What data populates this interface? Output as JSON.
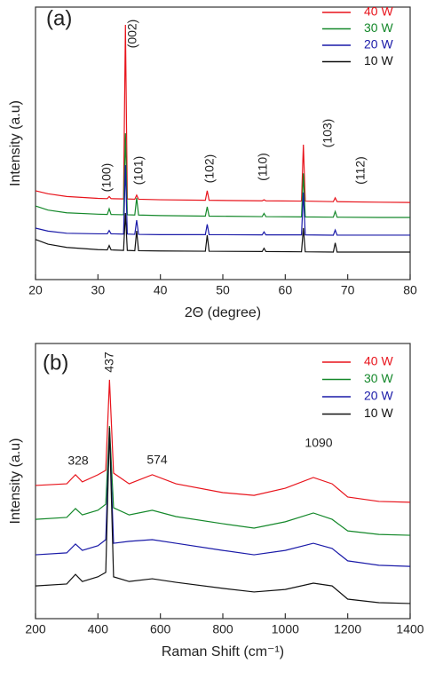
{
  "chart_data": [
    {
      "type": "line",
      "panel_label": "(a)",
      "xlabel": "2Θ (degree)",
      "ylabel": "Intensity (a.u)",
      "x": [
        20,
        22,
        25,
        30,
        31.5,
        31.8,
        32.1,
        34.1,
        34.4,
        34.7,
        35.9,
        36.2,
        36.5,
        40,
        47.2,
        47.5,
        47.8,
        56.3,
        56.6,
        56.9,
        62.6,
        62.9,
        63.2,
        67.7,
        68,
        68.3,
        75,
        80
      ],
      "xlim": [
        20,
        80
      ],
      "xticks": [
        20,
        30,
        40,
        50,
        60,
        70,
        80
      ],
      "ylim": [
        0,
        100
      ],
      "legend": "upper right",
      "annotations": [
        "(100)",
        "(002)",
        "(101)",
        "(102)",
        "(110)",
        "(103)",
        "(112)"
      ],
      "series": [
        {
          "name": "40 W",
          "color": "#e8141c",
          "values": [
            32.6,
            31.5,
            30.5,
            29.8,
            29.7,
            30.5,
            29.7,
            29.6,
            93.5,
            29.6,
            29.5,
            31,
            29.5,
            29.3,
            29.1,
            32.6,
            29.1,
            28.9,
            29.3,
            28.9,
            28.8,
            49.5,
            28.8,
            28.6,
            30,
            28.6,
            28.4,
            28.3
          ]
        },
        {
          "name": "30 W",
          "color": "#14882a",
          "values": [
            27,
            25.5,
            24.5,
            24,
            23.9,
            26,
            23.9,
            23.8,
            53.7,
            23.8,
            23.7,
            30,
            23.7,
            23.5,
            23.3,
            26.7,
            23.3,
            23.1,
            24.3,
            23.1,
            23,
            39,
            23,
            22.9,
            25,
            22.9,
            22.8,
            22.8
          ]
        },
        {
          "name": "20 W",
          "color": "#1a1aa8",
          "values": [
            18.9,
            17.8,
            17,
            16.8,
            16.8,
            18,
            16.8,
            16.7,
            42,
            16.7,
            16.6,
            21.8,
            16.6,
            16.5,
            16.5,
            20.3,
            16.5,
            16.4,
            17.5,
            16.4,
            16.4,
            32,
            16.4,
            16.3,
            18.2,
            16.3,
            16.3,
            16.3
          ]
        },
        {
          "name": "10 W",
          "color": "#111111",
          "values": [
            14.7,
            13,
            11.8,
            11,
            10.9,
            12.5,
            10.9,
            10.7,
            24.4,
            10.7,
            10.6,
            17.9,
            10.6,
            10.5,
            10.4,
            16.3,
            10.4,
            10.3,
            11.5,
            10.3,
            10.2,
            18.9,
            10.2,
            10.1,
            13.5,
            10.1,
            10.1,
            10.1
          ]
        }
      ]
    },
    {
      "type": "line",
      "panel_label": "(b)",
      "xlabel": "Raman Shift (cm⁻¹)",
      "ylabel": "Intensity (a.u)",
      "x": [
        200,
        300,
        328,
        350,
        400,
        425,
        437,
        450,
        500,
        574,
        650,
        800,
        900,
        1000,
        1090,
        1150,
        1200,
        1300,
        1400
      ],
      "xlim": [
        200,
        1400
      ],
      "xticks": [
        200,
        400,
        600,
        800,
        1000,
        1200,
        1400
      ],
      "ylim": [
        0,
        100
      ],
      "legend": "upper right",
      "annotations": [
        "328",
        "437",
        "574",
        "1090"
      ],
      "series": [
        {
          "name": "40 W",
          "color": "#e8141c",
          "values": [
            48.4,
            49,
            52.3,
            49.7,
            52.3,
            53.9,
            86.8,
            52.9,
            49,
            52.3,
            49,
            45.8,
            44.8,
            47.4,
            51.3,
            49,
            44.2,
            42.6,
            42.3
          ]
        },
        {
          "name": "30 W",
          "color": "#14882a",
          "values": [
            36.1,
            36.8,
            40,
            37.7,
            39.4,
            41.6,
            70,
            40.3,
            37.7,
            39.4,
            37.1,
            34.5,
            32.9,
            35.2,
            38.4,
            36.1,
            31.9,
            30.6,
            30.3
          ]
        },
        {
          "name": "20 W",
          "color": "#1a1aa8",
          "values": [
            23.2,
            23.9,
            27.1,
            24.8,
            26.5,
            28.7,
            68.4,
            27.4,
            28.1,
            28.7,
            27.4,
            24.8,
            23.2,
            24.8,
            27.4,
            25.5,
            21,
            19.4,
            19
          ]
        },
        {
          "name": "10 W",
          "color": "#111111",
          "values": [
            11.9,
            12.6,
            16.1,
            13.5,
            15.2,
            16.8,
            69.4,
            15.2,
            13.5,
            14.5,
            13.2,
            11,
            9.7,
            10.6,
            12.9,
            11.9,
            7.1,
            5.8,
            5.5
          ]
        }
      ]
    }
  ]
}
